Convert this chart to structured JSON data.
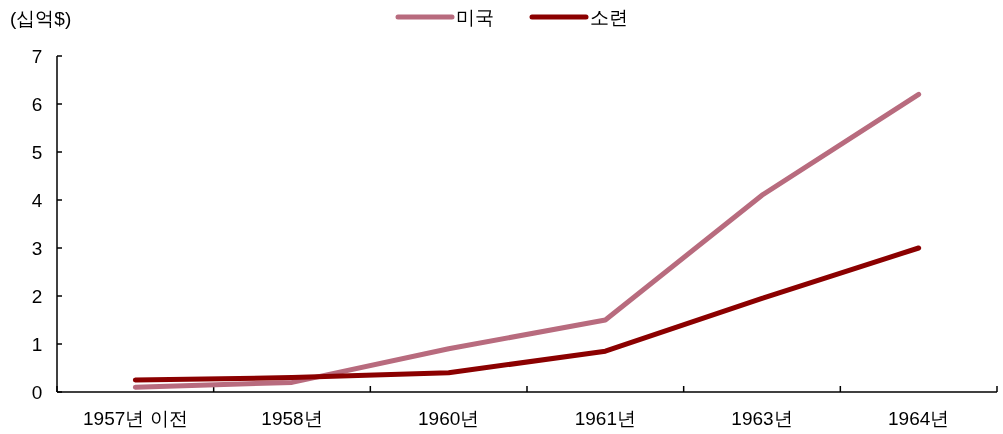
{
  "chart_data": {
    "type": "line",
    "ylabel": "(십억$)",
    "categories": [
      "1957년 이전",
      "1958년",
      "1960년",
      "1961년",
      "1963년",
      "1964년"
    ],
    "series": [
      {
        "name": "미국",
        "color": "#b86b7e",
        "values": [
          0.1,
          0.2,
          0.9,
          1.5,
          4.1,
          6.2
        ]
      },
      {
        "name": "소련",
        "color": "#8b0000",
        "values": [
          0.25,
          0.3,
          0.4,
          0.85,
          1.95,
          3.0
        ]
      }
    ],
    "ylim": [
      0,
      7
    ],
    "yticks": [
      0,
      1,
      2,
      3,
      4,
      5,
      6,
      7
    ],
    "grid": false,
    "legend": "top",
    "marker": "none",
    "line_style": "solid"
  }
}
